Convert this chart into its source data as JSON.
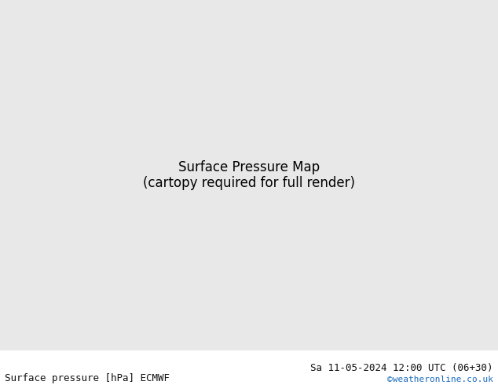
{
  "title_left": "Surface pressure [hPa] ECMWF",
  "title_right": "Sa 11-05-2024 12:00 UTC (06+30)",
  "watermark": "©weatheronline.co.uk",
  "bg_color": "#e8e8e8",
  "land_color": "#c8e6c0",
  "sea_color": "#dce9f5",
  "map_bg": "#d4d4d4",
  "text_color_left": "#111111",
  "text_color_right": "#111111",
  "watermark_color": "#1a6bbf",
  "font_size_labels": 9,
  "font_size_title": 9,
  "font_size_watermark": 8,
  "isobar_colors": {
    "black": "#000000",
    "red": "#cc0000",
    "blue": "#0033cc"
  },
  "isobar_linewidth": 1.2,
  "label_fontsize": 7
}
